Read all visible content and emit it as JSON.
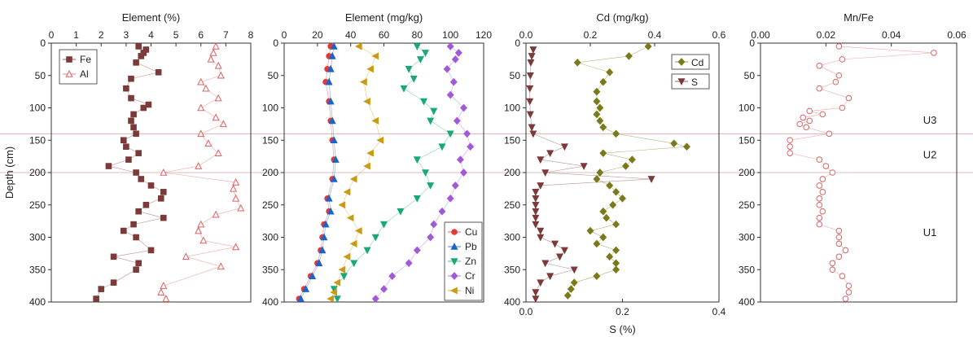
{
  "figure": {
    "shared_ylabel": "Depth (cm)",
    "ylim": [
      400,
      0
    ],
    "yticks": [
      0,
      50,
      100,
      150,
      200,
      250,
      300,
      350,
      400
    ],
    "boundary_depths": [
      140,
      200
    ],
    "unit_labels": [
      {
        "text": "U3",
        "depth": 118
      },
      {
        "text": "U2",
        "depth": 172
      },
      {
        "text": "U1",
        "depth": 292
      }
    ]
  },
  "chart_data": [
    {
      "type": "scatter",
      "title": "Element (%)",
      "xlim": [
        0,
        8
      ],
      "xticks": [
        0,
        1,
        2,
        3,
        4,
        5,
        6,
        7,
        8
      ],
      "legend": "top-left",
      "series": [
        {
          "name": "Fe",
          "color": "#7b3b3b",
          "marker": "square",
          "filled": true,
          "depth": [
            5,
            10,
            15,
            20,
            30,
            45,
            55,
            70,
            85,
            95,
            100,
            110,
            120,
            130,
            140,
            150,
            160,
            170,
            180,
            190,
            200,
            210,
            220,
            230,
            240,
            250,
            260,
            270,
            280,
            290,
            300,
            320,
            330,
            340,
            350,
            370,
            380,
            395
          ],
          "values": [
            3.5,
            3.8,
            3.7,
            3.6,
            3.4,
            4.3,
            3.2,
            3.0,
            3.2,
            3.9,
            3.7,
            3.3,
            3.2,
            3.3,
            3.4,
            2.9,
            3.0,
            3.5,
            3.1,
            2.3,
            3.4,
            3.6,
            4.0,
            4.5,
            4.4,
            3.8,
            3.5,
            4.5,
            3.3,
            2.9,
            3.4,
            4.0,
            2.5,
            3.5,
            3.4,
            2.5,
            2.0,
            1.8
          ]
        },
        {
          "name": "Al",
          "color": "#e06060",
          "marker": "triangle",
          "filled": false,
          "depth": [
            5,
            15,
            25,
            35,
            50,
            60,
            70,
            85,
            100,
            115,
            125,
            140,
            155,
            170,
            190,
            200,
            215,
            225,
            240,
            255,
            265,
            280,
            290,
            305,
            315,
            330,
            345,
            375,
            385,
            395
          ],
          "values": [
            6.6,
            6.5,
            6.4,
            6.7,
            6.8,
            6.0,
            6.2,
            6.7,
            6.0,
            6.6,
            6.9,
            6.0,
            6.3,
            6.7,
            5.9,
            4.5,
            7.4,
            7.3,
            7.4,
            7.6,
            6.6,
            6.0,
            5.9,
            6.1,
            7.4,
            5.4,
            6.8,
            4.5,
            4.4,
            4.6
          ]
        }
      ]
    },
    {
      "type": "scatter",
      "title": "Element (mg/kg)",
      "xlim": [
        0,
        120
      ],
      "xticks": [
        0,
        20,
        40,
        60,
        80,
        100,
        120
      ],
      "legend": "bottom-right",
      "series": [
        {
          "name": "Cu",
          "color": "#e53935",
          "marker": "circle",
          "filled": true,
          "depth": [
            5,
            20,
            40,
            60,
            90,
            120,
            150,
            180,
            210,
            240,
            260,
            280,
            300,
            320,
            340,
            360,
            380,
            395
          ],
          "values": [
            28,
            27,
            26,
            25,
            27,
            28,
            29,
            30,
            29,
            26,
            27,
            24,
            23,
            22,
            20,
            16,
            12,
            9
          ]
        },
        {
          "name": "Pb",
          "color": "#1e64c8",
          "marker": "triangle",
          "filled": true,
          "depth": [
            5,
            20,
            40,
            60,
            90,
            120,
            150,
            180,
            210,
            240,
            260,
            280,
            300,
            320,
            340,
            360,
            380,
            395
          ],
          "values": [
            30,
            29,
            28,
            27,
            28,
            29,
            30,
            31,
            30,
            27,
            28,
            25,
            24,
            23,
            21,
            17,
            13,
            10
          ]
        },
        {
          "name": "Zn",
          "color": "#1aa87a",
          "marker": "tri-down",
          "filled": true,
          "depth": [
            5,
            15,
            25,
            40,
            55,
            70,
            90,
            105,
            120,
            140,
            160,
            180,
            200,
            220,
            240,
            260,
            280,
            300,
            320,
            340,
            360,
            380,
            395
          ],
          "values": [
            80,
            85,
            82,
            75,
            78,
            72,
            84,
            90,
            88,
            100,
            95,
            80,
            85,
            88,
            80,
            70,
            60,
            55,
            50,
            42,
            36,
            30,
            32
          ]
        },
        {
          "name": "Cr",
          "color": "#a259d9",
          "marker": "diamond",
          "filled": true,
          "depth": [
            5,
            15,
            25,
            40,
            60,
            80,
            100,
            120,
            140,
            160,
            180,
            200,
            220,
            240,
            260,
            280,
            300,
            320,
            340,
            360,
            380,
            395
          ],
          "values": [
            100,
            105,
            103,
            98,
            102,
            100,
            108,
            104,
            110,
            112,
            106,
            108,
            103,
            100,
            95,
            90,
            88,
            80,
            75,
            65,
            60,
            55
          ]
        },
        {
          "name": "Ni",
          "color": "#c99a12",
          "marker": "tri-left",
          "filled": true,
          "depth": [
            5,
            20,
            40,
            60,
            90,
            120,
            150,
            170,
            190,
            210,
            230,
            250,
            270,
            290,
            310,
            330,
            350,
            370,
            385,
            395
          ],
          "values": [
            45,
            55,
            52,
            48,
            50,
            55,
            58,
            52,
            50,
            42,
            38,
            35,
            40,
            45,
            42,
            38,
            35,
            32,
            30,
            28
          ]
        }
      ]
    },
    {
      "type": "scatter",
      "title": "Cd (mg/kg)",
      "xlim": [
        0,
        0.6
      ],
      "xticks": [
        0,
        0.2,
        0.4,
        0.6
      ],
      "xticklabels": [
        "0.0",
        "0.2",
        "0.4",
        "0.6"
      ],
      "secondary_axis": {
        "xlabel": "S (%)",
        "xlim": [
          0,
          0.4
        ],
        "xticks": [
          0,
          0.2,
          0.4
        ],
        "xticklabels": [
          "0.0",
          "0.2",
          "0.4"
        ]
      },
      "legend": "top-right",
      "series": [
        {
          "name": "Cd",
          "color": "#7a7a1a",
          "marker": "diamond",
          "filled": true,
          "axis": "top",
          "depth": [
            5,
            20,
            30,
            45,
            60,
            75,
            90,
            100,
            110,
            120,
            130,
            140,
            155,
            160,
            170,
            180,
            190,
            200,
            210,
            220,
            230,
            240,
            250,
            260,
            270,
            280,
            290,
            300,
            310,
            320,
            330,
            340,
            350,
            360,
            370,
            380,
            390
          ],
          "values": [
            0.38,
            0.32,
            0.16,
            0.26,
            0.24,
            0.22,
            0.22,
            0.23,
            0.22,
            0.23,
            0.24,
            0.28,
            0.46,
            0.5,
            0.24,
            0.33,
            0.31,
            0.23,
            0.22,
            0.26,
            0.28,
            0.3,
            0.27,
            0.24,
            0.25,
            0.28,
            0.2,
            0.24,
            0.22,
            0.28,
            0.26,
            0.28,
            0.28,
            0.22,
            0.15,
            0.14,
            0.13
          ]
        },
        {
          "name": "S",
          "color": "#7b3b3b",
          "marker": "tri-down",
          "filled": true,
          "axis": "bottom",
          "depth": [
            10,
            20,
            30,
            50,
            70,
            90,
            110,
            130,
            140,
            160,
            170,
            180,
            190,
            200,
            210,
            220,
            230,
            240,
            250,
            260,
            270,
            280,
            290,
            300,
            310,
            320,
            330,
            340,
            350,
            360,
            370,
            385,
            395
          ],
          "values": [
            0.015,
            0.012,
            0.01,
            0.009,
            0.008,
            0.008,
            0.009,
            0.012,
            0.015,
            0.08,
            0.05,
            0.03,
            0.12,
            0.04,
            0.26,
            0.03,
            0.02,
            0.02,
            0.02,
            0.02,
            0.02,
            0.02,
            0.03,
            0.03,
            0.06,
            0.08,
            0.07,
            0.04,
            0.1,
            0.05,
            0.03,
            0.02,
            0.02
          ]
        }
      ]
    },
    {
      "type": "scatter",
      "title": "Mn/Fe",
      "xlim": [
        0,
        0.06
      ],
      "xticks": [
        0,
        0.02,
        0.04,
        0.06
      ],
      "xticklabels": [
        "0.00",
        "0.02",
        "0.04",
        "0.06"
      ],
      "series": [
        {
          "name": "Mn/Fe",
          "color": "#e06060",
          "marker": "circle",
          "filled": false,
          "depth": [
            5,
            15,
            25,
            35,
            50,
            60,
            70,
            85,
            100,
            105,
            110,
            115,
            120,
            125,
            130,
            140,
            150,
            160,
            170,
            180,
            190,
            200,
            210,
            220,
            230,
            240,
            250,
            260,
            270,
            280,
            290,
            300,
            310,
            320,
            330,
            340,
            350,
            360,
            375,
            385,
            395
          ],
          "values": [
            0.024,
            0.053,
            0.025,
            0.018,
            0.024,
            0.023,
            0.018,
            0.027,
            0.025,
            0.015,
            0.019,
            0.013,
            0.015,
            0.012,
            0.014,
            0.021,
            0.009,
            0.009,
            0.009,
            0.018,
            0.02,
            0.022,
            0.019,
            0.018,
            0.019,
            0.018,
            0.018,
            0.019,
            0.018,
            0.018,
            0.024,
            0.024,
            0.024,
            0.026,
            0.024,
            0.022,
            0.022,
            0.025,
            0.027,
            0.027,
            0.026
          ]
        }
      ]
    }
  ]
}
